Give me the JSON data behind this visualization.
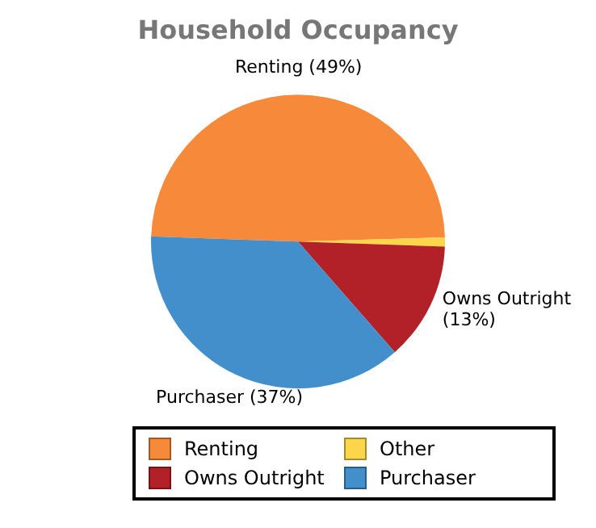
{
  "chart_data": {
    "type": "pie",
    "title": "Household Occupancy",
    "categories": [
      "Renting",
      "Other",
      "Owns Outright",
      "Purchaser"
    ],
    "values": [
      49,
      1,
      13,
      37
    ],
    "colors": [
      "#f7893a",
      "#fcd64a",
      "#b22028",
      "#428fcc"
    ],
    "value_labels": [
      "Renting (49%)",
      null,
      "Owns Outright (13%)",
      "Purchaser (37%)"
    ],
    "legend": "bottom"
  }
}
